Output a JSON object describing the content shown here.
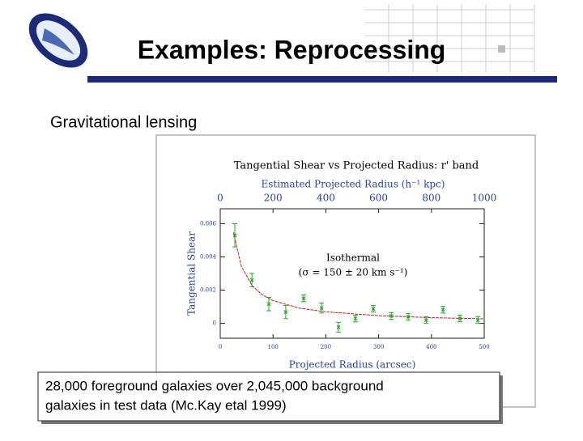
{
  "slide": {
    "title": "Examples: Reprocessing",
    "subtitle": "Gravitational lensing",
    "caption": [
      "28,000 foreground galaxies over 2,045,000 background",
      "galaxies in test data (Mc.Kay etal 1999)"
    ]
  },
  "chart_data": {
    "type": "scatter",
    "title": "Tangential Shear vs Projected Radius: r' band",
    "x2_label": "Estimated Projected Radius (h⁻¹ kpc)",
    "x_label": "Projected Radius (arcsec)",
    "y_label": "Tangential Shear",
    "annotations": [
      "Isothermal",
      "(σ = 150 ± 20 km s⁻¹)"
    ],
    "x": [
      27.6,
      60,
      92,
      124,
      158,
      192,
      224,
      256,
      290,
      324,
      356,
      390,
      422,
      454,
      488
    ],
    "values": [
      0.0053,
      0.0026,
      0.00116,
      0.00068,
      0.0015,
      0.00092,
      -0.00024,
      0.00029,
      0.00087,
      0.00044,
      0.00039,
      0.00019,
      0.00082,
      0.00029,
      0.00019
    ],
    "errors": [
      0.0007,
      0.0004,
      0.0004,
      0.0004,
      0.0002,
      0.0003,
      0.0003,
      0.0002,
      0.0002,
      0.0002,
      0.0002,
      0.0002,
      0.0002,
      0.0002,
      0.0002
    ],
    "color": "#22aa22",
    "fit": {
      "x": [
        25,
        40,
        60,
        80,
        100,
        150,
        200,
        300,
        400,
        500
      ],
      "values": [
        0.00548,
        0.00343,
        0.00228,
        0.00171,
        0.00137,
        0.00091,
        0.00069,
        0.00046,
        0.00034,
        0.00027
      ],
      "color": "#cc2222"
    },
    "xlim": [
      0,
      500
    ],
    "xticks": [
      0,
      100,
      200,
      300,
      400,
      500
    ],
    "x2lim": [
      0,
      1000
    ],
    "x2ticks": [
      0,
      200,
      400,
      600,
      800,
      1000
    ],
    "ylim": [
      -0.0009,
      0.0069
    ],
    "yticks": [
      0,
      0.002,
      0.004,
      0.006
    ]
  }
}
